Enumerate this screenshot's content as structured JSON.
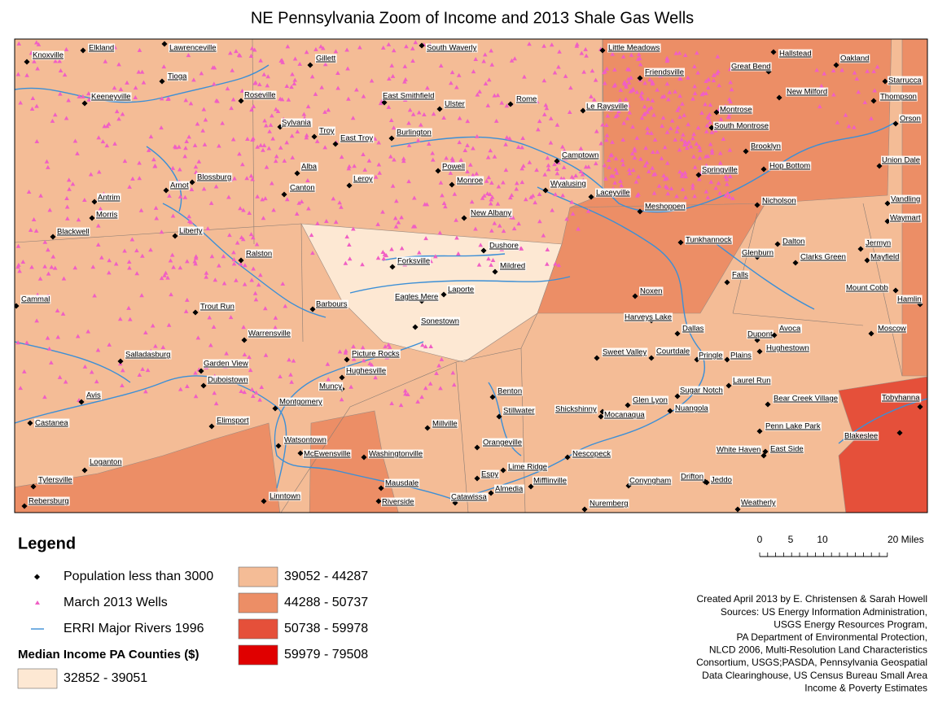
{
  "title": "NE Pennsylvania Zoom of Income and 2013 Shale Gas Wells",
  "map": {
    "towns": [
      "Knoxville",
      "Elkland",
      "Lawrenceville",
      "Gillett",
      "South Waverly",
      "Little Meadows",
      "Hallstead",
      "Oakland",
      "Great Bend",
      "Friendsville",
      "Starrucca",
      "Tioga",
      "Keeneyville",
      "Roseville",
      "East Smithfield",
      "Ulster",
      "Rome",
      "New Milford",
      "Thompson",
      "Le Raysville",
      "Montrose",
      "Orson",
      "Sylvania",
      "Troy",
      "South Montrose",
      "Burlington",
      "East Troy",
      "Brooklyn",
      "Camptown",
      "Union Dale",
      "Alba",
      "Powell",
      "Hop Bottom",
      "Springville",
      "Blossburg",
      "Monroe",
      "Leroy",
      "Arnot",
      "Wyalusing",
      "Canton",
      "Laceyville",
      "Antrim",
      "Nicholson",
      "Vandling",
      "Meshoppen",
      "Morris",
      "New Albany",
      "Waymart",
      "Liberty",
      "Blackwell",
      "Tunkhannock",
      "Dalton",
      "Jermyn",
      "Dushore",
      "Glenburn",
      "Clarks Green",
      "Mayfield",
      "Ralston",
      "Forksville",
      "Mildred",
      "Falls",
      "Mount Cobb",
      "Laporte",
      "Noxen",
      "Eagles Mere",
      "Cammal",
      "Hamlin",
      "Barbours",
      "Trout Run",
      "Harveys Lake",
      "Sonestown",
      "Dallas",
      "Moscow",
      "Dupont",
      "Avoca",
      "Warrensville",
      "Hughestown",
      "Sweet Valley",
      "Courtdale",
      "Pringle",
      "Plains",
      "Picture Rocks",
      "Salladasburg",
      "Garden View",
      "Hughesville",
      "Laurel Run",
      "Duboistown",
      "Muncy",
      "Benton",
      "Sugar Notch",
      "Avis",
      "Bear Creek Village",
      "Tobyhanna",
      "Montgomery",
      "Glen Lyon",
      "Shickshinny",
      "Stillwater",
      "Nuangola",
      "Mocanaqua",
      "Elimsport",
      "Castanea",
      "Millville",
      "Penn Lake Park",
      "Blakeslee",
      "Watsontown",
      "Orangeville",
      "White Haven",
      "East Side",
      "McEwensville",
      "Nescopeck",
      "Washingtonville",
      "Loganton",
      "Lime Ridge",
      "Espy",
      "Drifton",
      "Jeddo",
      "Conyngham",
      "Mifflinville",
      "Tylersville",
      "Mausdale",
      "Almedia",
      "Linntown",
      "Catawissa",
      "Riverside",
      "Rebersburg",
      "Nuremberg",
      "Weatherly"
    ]
  },
  "legend": {
    "title": "Legend",
    "items": [
      {
        "label": "Population less than 3000"
      },
      {
        "label": "March 2013 Wells"
      },
      {
        "label": "ERRI Major Rivers 1996"
      }
    ],
    "income_title": "Median Income PA Counties ($)",
    "income_classes": [
      {
        "label": "32852 - 39051",
        "color": "#fde8d3"
      },
      {
        "label": "39052 - 44287",
        "color": "#f4bc96"
      },
      {
        "label": "44288 - 50737",
        "color": "#ec8e66"
      },
      {
        "label": "50738 - 59978",
        "color": "#e5503a"
      },
      {
        "label": "59979 - 79508",
        "color": "#e00000"
      }
    ]
  },
  "scale_bar": {
    "labels": [
      "0",
      "5",
      "10",
      "20 Miles"
    ]
  },
  "credits": [
    "Created April 2013 by E. Christensen & Sarah Howell",
    "Sources: US Energy Information Administration,",
    "USGS Energy Resources Program,",
    "PA Department of Environmental Protection,",
    "NLCD 2006, Multi-Resolution Land Characteristics",
    "Consortium, USGS;PASDA, Pennsylvania Geospatial",
    "Data Clearinghouse, US Census Bureau Small Area",
    "Income & Poverty Estimates"
  ]
}
